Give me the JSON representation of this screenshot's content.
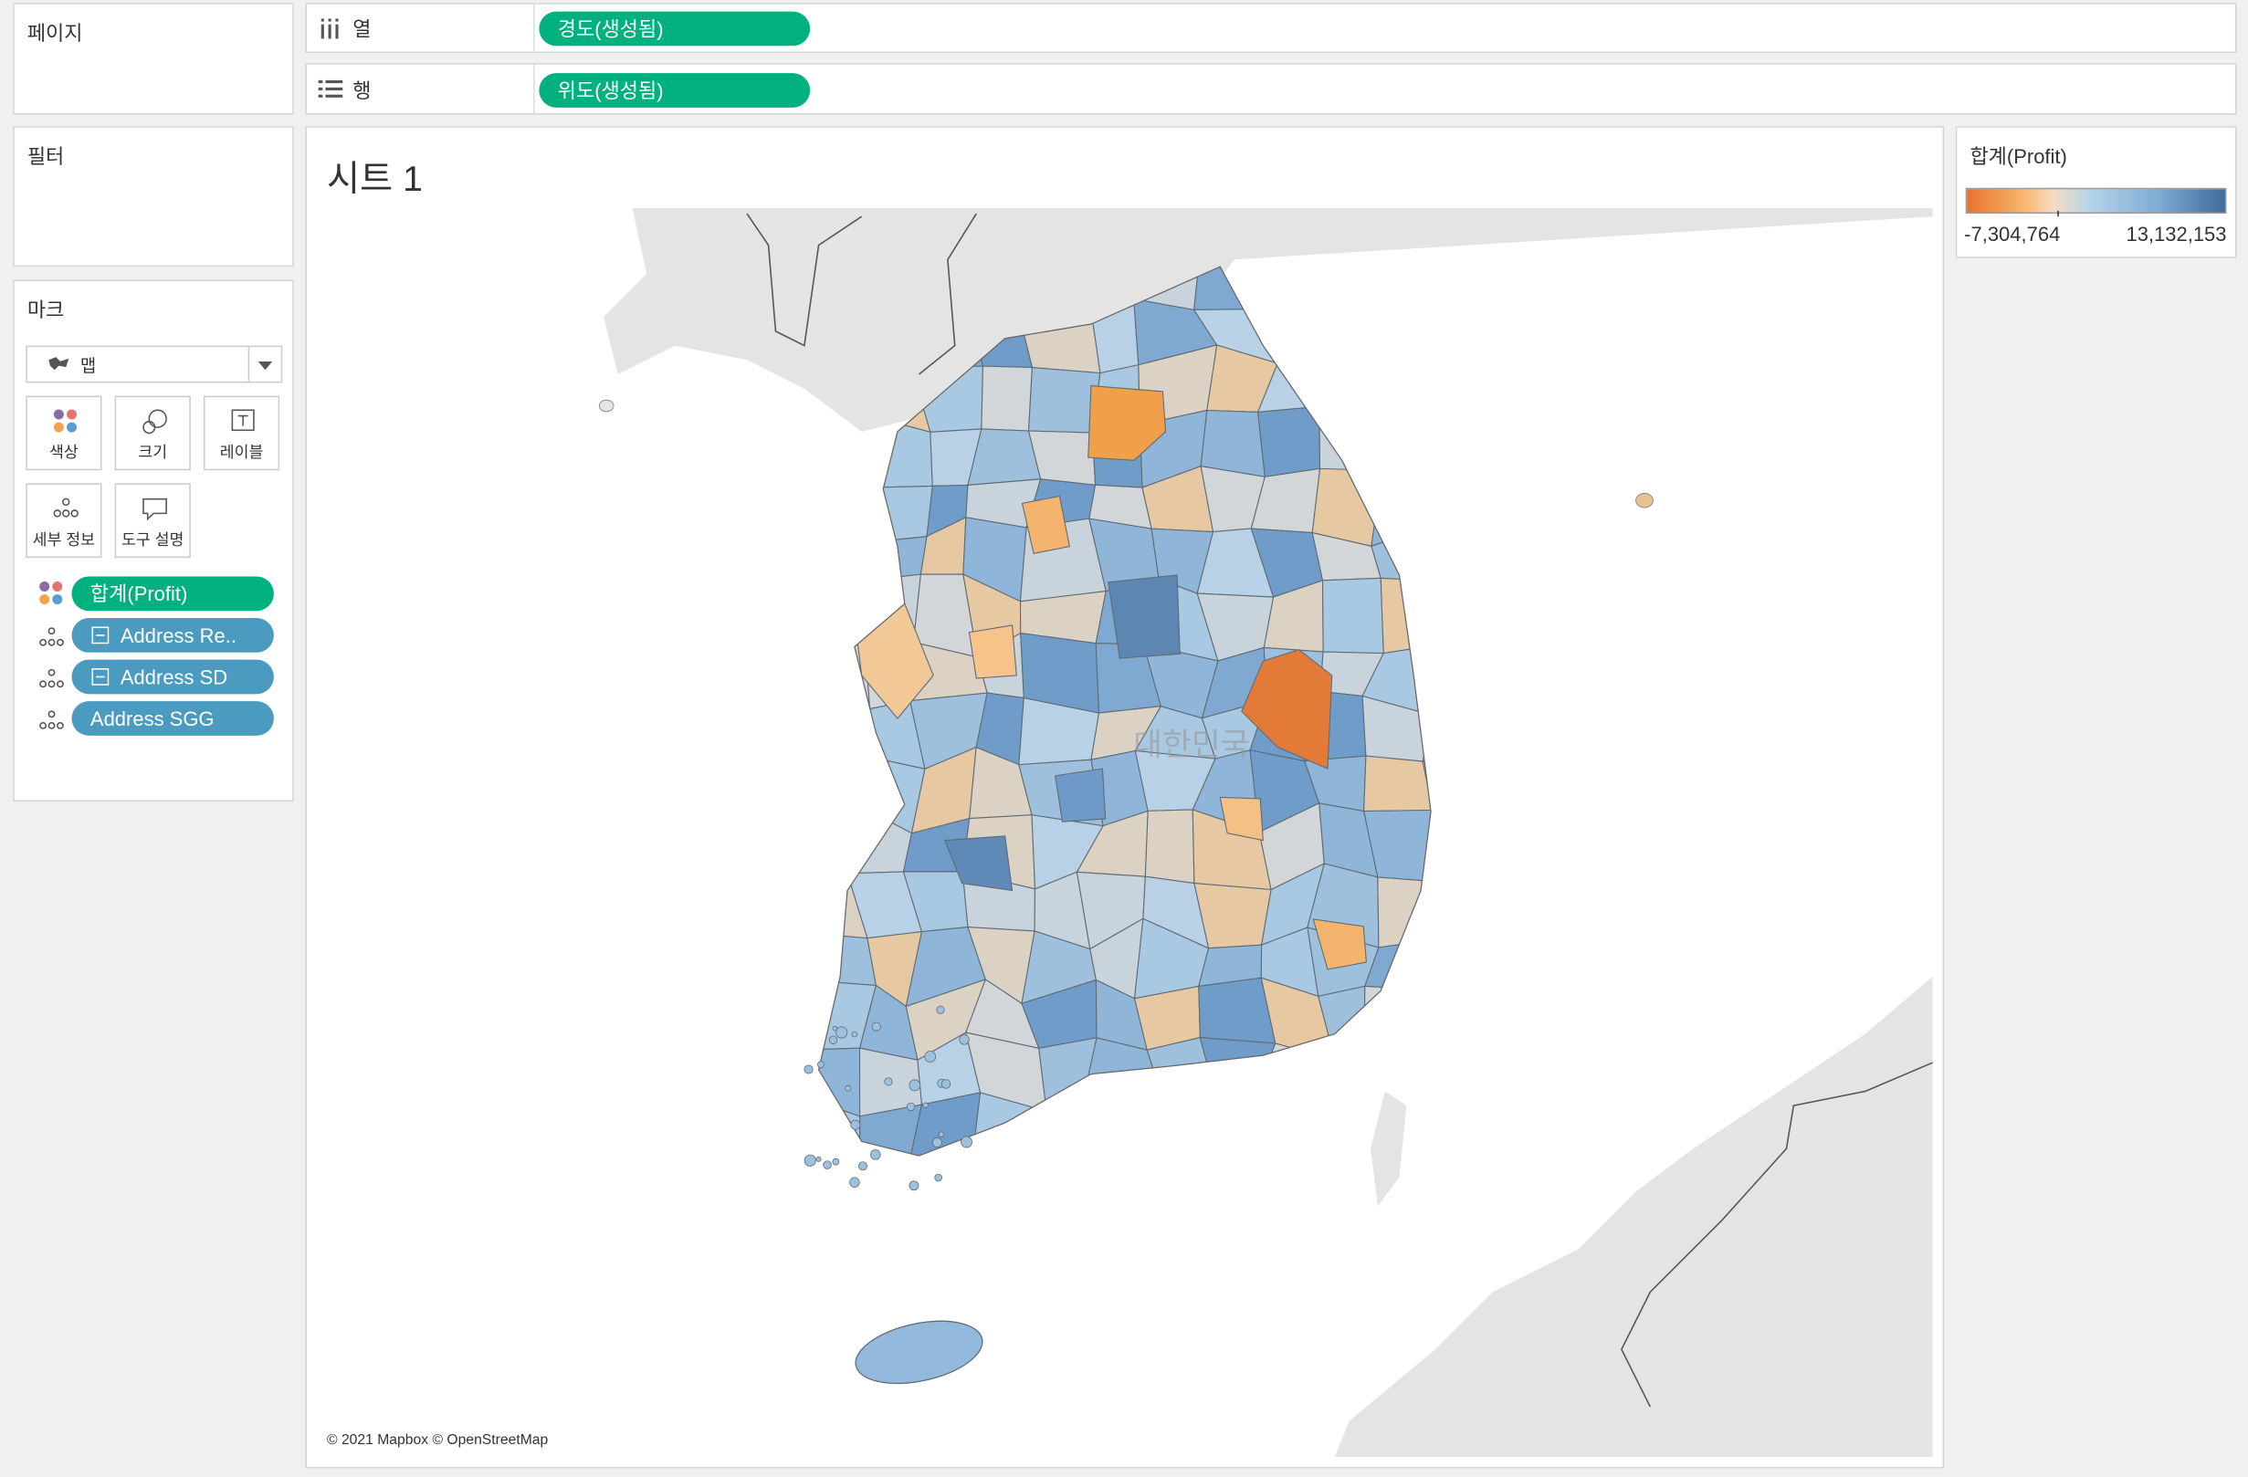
{
  "shelves": {
    "pages": "페이지",
    "columns": {
      "label": "열",
      "pill": "경도(생성됨)"
    },
    "rows": {
      "label": "행",
      "pill": "위도(생성됨)"
    },
    "filters": "필터"
  },
  "marks": {
    "title": "마크",
    "mark_type": "맵",
    "buttons": [
      "색상",
      "크기",
      "레이블",
      "세부 정보",
      "도구 설명"
    ],
    "fields": [
      "합계(Profit)",
      "Address Re..",
      "Address SD",
      "Address SGG"
    ]
  },
  "sheet": {
    "title": "시트 1",
    "map_label": "대한민국",
    "attribution": "© 2021 Mapbox © OpenStreetMap"
  },
  "legend": {
    "title": "합계(Profit)",
    "min_label": "-7,304,764",
    "max_label": "13,132,153"
  }
}
